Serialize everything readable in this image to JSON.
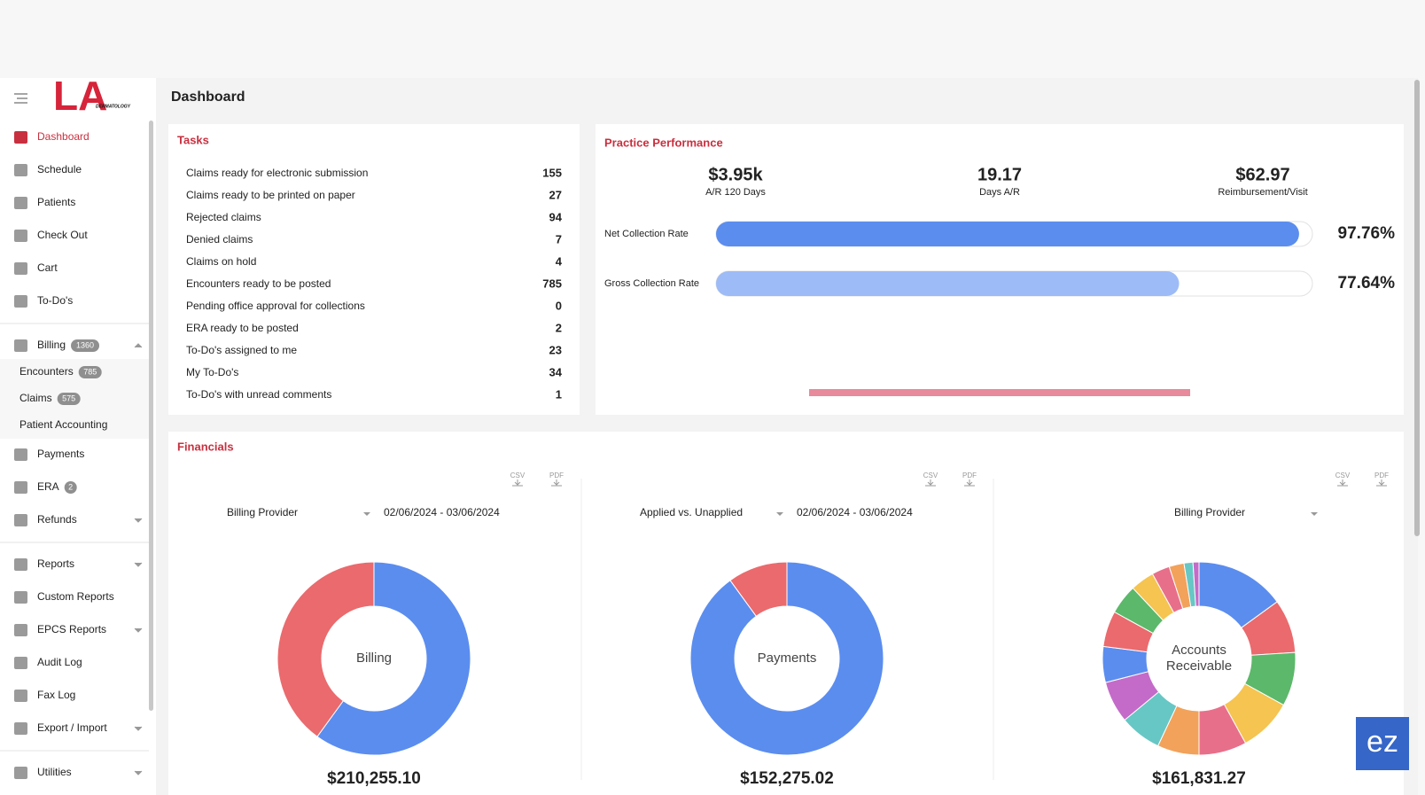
{
  "logo": {
    "mark": "LA",
    "sub": "DERMATOLOGY"
  },
  "page_title": "Dashboard",
  "sidebar": {
    "items": [
      {
        "label": "Dashboard",
        "active": true
      },
      {
        "label": "Schedule"
      },
      {
        "label": "Patients"
      },
      {
        "label": "Check Out"
      },
      {
        "label": "Cart"
      },
      {
        "label": "To-Do's",
        "divider_after": true
      },
      {
        "label": "Billing",
        "badge": 1360,
        "chevron": "up"
      },
      {
        "label": "Encounters",
        "badge": 785,
        "sub": true
      },
      {
        "label": "Claims",
        "badge": 575,
        "sub": true
      },
      {
        "label": "Patient Accounting",
        "sub": true
      },
      {
        "label": "Payments"
      },
      {
        "label": "ERA",
        "badge": 2
      },
      {
        "label": "Refunds",
        "chevron": "down",
        "divider_after": true
      },
      {
        "label": "Reports",
        "chevron": "down"
      },
      {
        "label": "Custom Reports"
      },
      {
        "label": "EPCS Reports",
        "chevron": "down"
      },
      {
        "label": "Audit Log"
      },
      {
        "label": "Fax Log"
      },
      {
        "label": "Export / Import",
        "chevron": "down",
        "divider_after": true
      },
      {
        "label": "Utilities",
        "chevron": "down"
      }
    ]
  },
  "tasks": {
    "title": "Tasks",
    "rows": [
      [
        "Claims ready for electronic submission",
        155
      ],
      [
        "Claims ready to be printed on paper",
        27
      ],
      [
        "Rejected claims",
        94
      ],
      [
        "Denied claims",
        7
      ],
      [
        "Claims on hold",
        4
      ],
      [
        "Encounters ready to be posted",
        785
      ],
      [
        "Pending office approval for collections",
        0
      ],
      [
        "ERA ready to be posted",
        2
      ],
      [
        "To-Do's assigned to me",
        23
      ],
      [
        "My To-Do's",
        34
      ],
      [
        "To-Do's with unread comments",
        1
      ]
    ]
  },
  "performance": {
    "title": "Practice Performance",
    "metrics": [
      {
        "value": "$3.95k",
        "label": "A/R 120 Days"
      },
      {
        "value": "19.17",
        "label": "Days A/R"
      },
      {
        "value": "$62.97",
        "label": "Reimbursement/Visit"
      }
    ],
    "rates": [
      {
        "label": "Net Collection Rate",
        "value": 97.76,
        "value_label": "97.76%",
        "color": "#5b8def"
      },
      {
        "label": "Gross Collection Rate",
        "value": 77.64,
        "value_label": "77.64%",
        "color": "#9dbbf7"
      }
    ]
  },
  "financials": {
    "title": "Financials",
    "export_labels": [
      "CSV",
      "PDF"
    ],
    "panels": [
      {
        "filter": "Billing Provider",
        "date": "02/06/2024 - 03/06/2024",
        "center": [
          "Billing"
        ],
        "total": "$210,255.10",
        "segments": [
          {
            "value": 60,
            "color": "#5b8def"
          },
          {
            "value": 40,
            "color": "#ea6a6d"
          }
        ]
      },
      {
        "filter": "Applied vs. Unapplied",
        "date": "02/06/2024 - 03/06/2024",
        "center": [
          "Payments"
        ],
        "total": "$152,275.02",
        "segments": [
          {
            "value": 90,
            "color": "#5b8def"
          },
          {
            "value": 10,
            "color": "#ea6a6d"
          }
        ]
      },
      {
        "filter": "Billing Provider",
        "center": [
          "Accounts",
          "Receivable"
        ],
        "total": "$161,831.27",
        "segments": [
          {
            "value": 15,
            "color": "#5b8def"
          },
          {
            "value": 9,
            "color": "#ea6a6d"
          },
          {
            "value": 9,
            "color": "#5cb86a"
          },
          {
            "value": 9,
            "color": "#f5c451"
          },
          {
            "value": 8,
            "color": "#e86f8a"
          },
          {
            "value": 7,
            "color": "#f2a25a"
          },
          {
            "value": 7,
            "color": "#67c7c5"
          },
          {
            "value": 7,
            "color": "#c46bc9"
          },
          {
            "value": 6,
            "color": "#5b8def"
          },
          {
            "value": 6,
            "color": "#ea6a6d"
          },
          {
            "value": 5,
            "color": "#5cb86a"
          },
          {
            "value": 4,
            "color": "#f5c451"
          },
          {
            "value": 3,
            "color": "#e86f8a"
          },
          {
            "value": 2.5,
            "color": "#f2a25a"
          },
          {
            "value": 1.5,
            "color": "#67c7c5"
          },
          {
            "value": 1,
            "color": "#c46bc9"
          }
        ]
      }
    ]
  },
  "badge": "ez"
}
